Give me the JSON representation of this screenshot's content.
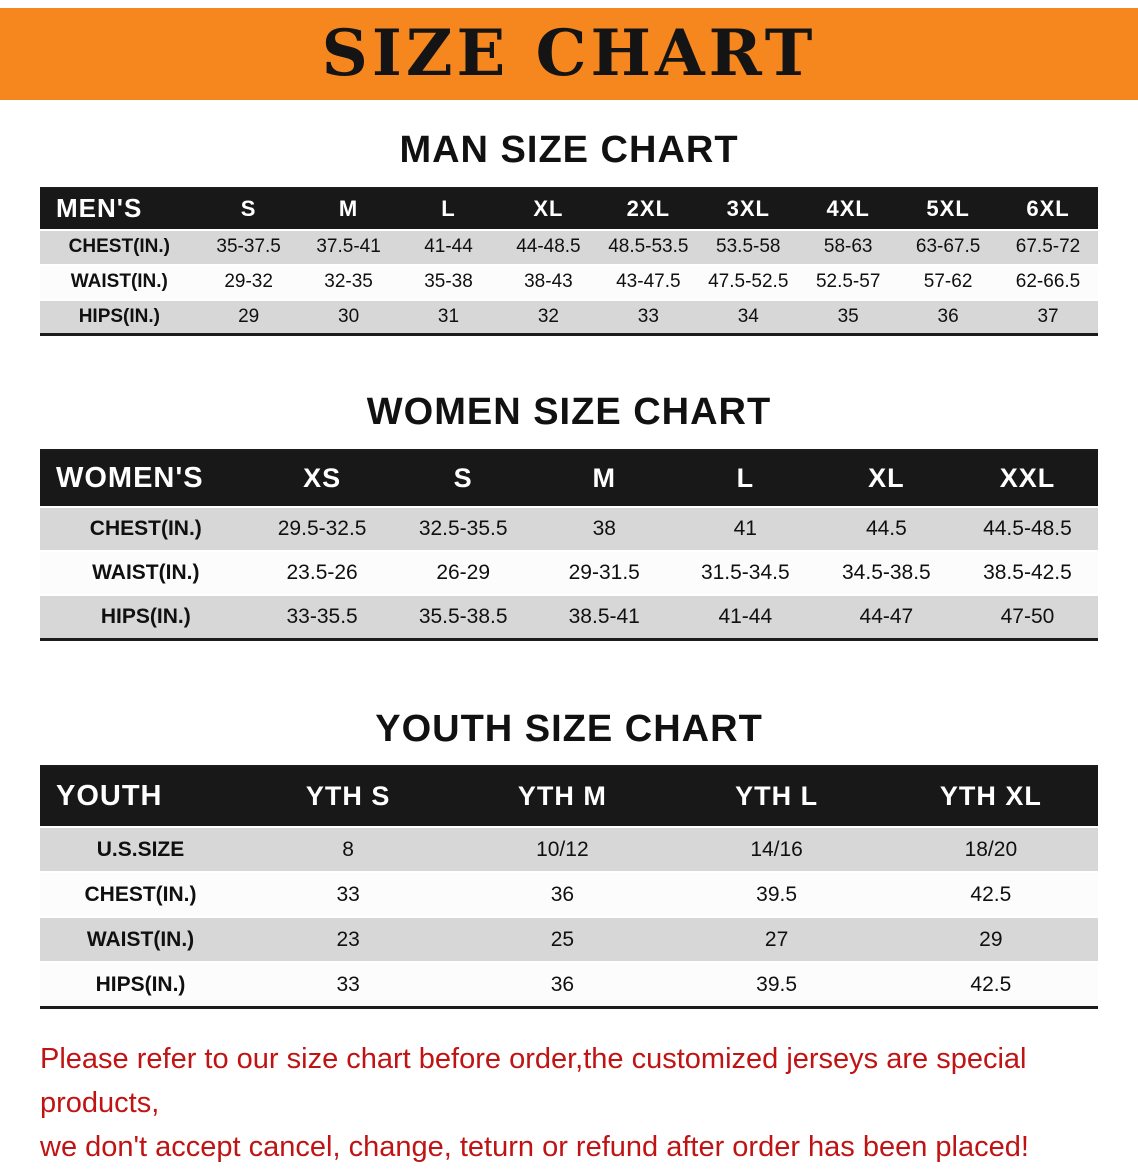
{
  "banner": {
    "title": "SIZE CHART",
    "bg_color": "#f6871f"
  },
  "sections": [
    {
      "heading": "MAN SIZE CHART",
      "table": {
        "label": "MEN'S",
        "columns": [
          "S",
          "M",
          "L",
          "XL",
          "2XL",
          "3XL",
          "4XL",
          "5XL",
          "6XL"
        ],
        "rows": [
          {
            "label": "CHEST(IN.)",
            "values": [
              "35-37.5",
              "37.5-41",
              "41-44",
              "44-48.5",
              "48.5-53.5",
              "53.5-58",
              "58-63",
              "63-67.5",
              "67.5-72"
            ]
          },
          {
            "label": "WAIST(IN.)",
            "values": [
              "29-32",
              "32-35",
              "35-38",
              "38-43",
              "43-47.5",
              "47.5-52.5",
              "52.5-57",
              "57-62",
              "62-66.5"
            ]
          },
          {
            "label": "HIPS(IN.)",
            "values": [
              "29",
              "30",
              "31",
              "32",
              "33",
              "34",
              "35",
              "36",
              "37"
            ]
          }
        ]
      }
    },
    {
      "heading": "WOMEN SIZE CHART",
      "table": {
        "label": "WOMEN'S",
        "columns": [
          "XS",
          "S",
          "M",
          "L",
          "XL",
          "XXL"
        ],
        "rows": [
          {
            "label": "CHEST(IN.)",
            "values": [
              "29.5-32.5",
              "32.5-35.5",
              "38",
              "41",
              "44.5",
              "44.5-48.5"
            ]
          },
          {
            "label": "WAIST(IN.)",
            "values": [
              "23.5-26",
              "26-29",
              "29-31.5",
              "31.5-34.5",
              "34.5-38.5",
              "38.5-42.5"
            ]
          },
          {
            "label": "HIPS(IN.)",
            "values": [
              "33-35.5",
              "35.5-38.5",
              "38.5-41",
              "41-44",
              "44-47",
              "47-50"
            ]
          }
        ]
      }
    },
    {
      "heading": "YOUTH SIZE CHART",
      "table": {
        "label": "YOUTH",
        "columns": [
          "YTH S",
          "YTH M",
          "YTH L",
          "YTH XL"
        ],
        "rows": [
          {
            "label": "U.S.SIZE",
            "values": [
              "8",
              "10/12",
              "14/16",
              "18/20"
            ]
          },
          {
            "label": "CHEST(IN.)",
            "values": [
              "33",
              "36",
              "39.5",
              "42.5"
            ]
          },
          {
            "label": "WAIST(IN.)",
            "values": [
              "23",
              "25",
              "27",
              "29"
            ]
          },
          {
            "label": "HIPS(IN.)",
            "values": [
              "33",
              "36",
              "39.5",
              "42.5"
            ]
          }
        ]
      }
    }
  ],
  "disclaimer": {
    "line1": "Please refer to our size chart before order,the customized jerseys are special products,",
    "line2": "we don't accept cancel, change, teturn or refund after order has been placed!",
    "color": "#c01414"
  }
}
